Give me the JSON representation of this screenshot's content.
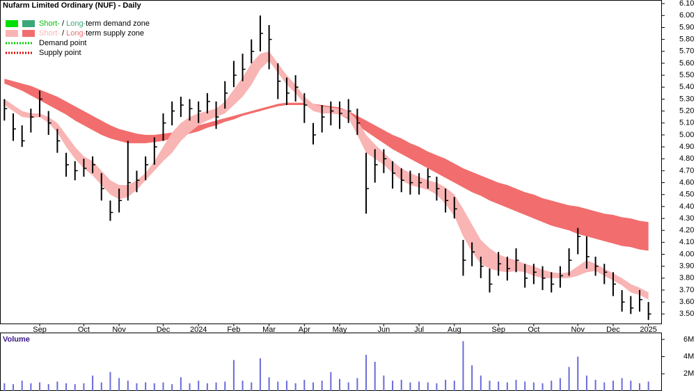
{
  "chart_data": {
    "type": "ohlc",
    "title": "Nufarm Limited Ordinary (NUF) - Daily",
    "categories": [
      null,
      null,
      null,
      null,
      "Sep",
      null,
      null,
      null,
      null,
      "Oct",
      null,
      null,
      null,
      "Nov",
      null,
      null,
      null,
      null,
      "Dec",
      null,
      null,
      null,
      "2024",
      null,
      null,
      null,
      "Feb",
      null,
      null,
      null,
      "Mar",
      null,
      null,
      null,
      "Apr",
      null,
      null,
      null,
      "May",
      null,
      null,
      null,
      null,
      "Jun",
      null,
      null,
      null,
      "Jul",
      null,
      null,
      null,
      "Aug",
      null,
      null,
      null,
      null,
      "Sep",
      null,
      null,
      null,
      "Oct",
      null,
      null,
      null,
      null,
      "Nov",
      null,
      null,
      null,
      "Dec",
      null,
      null,
      null,
      "2025"
    ],
    "high": [
      5.3,
      5.18,
      5.08,
      5.22,
      5.37,
      5.2,
      5.05,
      4.85,
      4.78,
      4.8,
      4.82,
      4.68,
      4.45,
      4.55,
      4.95,
      4.7,
      4.82,
      4.98,
      5.18,
      5.28,
      5.32,
      5.3,
      5.28,
      5.35,
      5.28,
      5.45,
      5.62,
      5.68,
      5.8,
      6.0,
      5.92,
      5.6,
      5.48,
      5.5,
      5.35,
      5.1,
      5.25,
      5.28,
      5.28,
      5.3,
      5.22,
      4.85,
      4.88,
      4.88,
      4.78,
      4.72,
      4.7,
      4.68,
      4.72,
      4.65,
      4.55,
      4.48,
      4.12,
      4.1,
      3.98,
      3.88,
      4.02,
      3.98,
      4.05,
      3.92,
      3.92,
      3.9,
      3.85,
      3.9,
      4.05,
      4.22,
      4.15,
      3.98,
      3.92,
      3.85,
      3.7,
      3.65,
      3.7,
      3.6
    ],
    "low": [
      5.12,
      4.95,
      4.9,
      5.02,
      5.15,
      5.0,
      4.85,
      4.65,
      4.62,
      4.65,
      4.68,
      4.45,
      4.28,
      4.35,
      4.45,
      4.52,
      4.62,
      4.75,
      4.95,
      5.08,
      5.15,
      5.12,
      5.1,
      5.18,
      5.05,
      5.22,
      5.4,
      5.45,
      5.6,
      5.7,
      5.55,
      5.3,
      5.25,
      5.28,
      5.1,
      4.92,
      5.02,
      5.08,
      5.05,
      5.1,
      5.0,
      4.34,
      4.6,
      4.68,
      4.55,
      4.52,
      4.5,
      4.5,
      4.55,
      4.45,
      4.35,
      4.3,
      3.82,
      3.9,
      3.8,
      3.68,
      3.82,
      3.78,
      3.85,
      3.72,
      3.75,
      3.7,
      3.68,
      3.72,
      3.82,
      4.0,
      3.88,
      3.82,
      3.75,
      3.65,
      3.52,
      3.5,
      3.52,
      3.45
    ],
    "close": [
      5.22,
      5.05,
      4.95,
      5.15,
      5.3,
      5.1,
      4.95,
      4.75,
      4.7,
      4.72,
      4.75,
      4.55,
      4.35,
      4.45,
      4.6,
      4.62,
      4.75,
      4.9,
      5.1,
      5.2,
      5.25,
      5.22,
      5.2,
      5.28,
      5.15,
      5.35,
      5.5,
      5.55,
      5.7,
      5.85,
      5.8,
      5.45,
      5.35,
      5.4,
      5.25,
      5.0,
      5.15,
      5.2,
      5.18,
      5.2,
      5.1,
      4.55,
      4.75,
      4.8,
      4.68,
      4.62,
      4.6,
      4.6,
      4.65,
      4.55,
      4.45,
      4.38,
      3.95,
      4.02,
      3.9,
      3.75,
      3.92,
      3.88,
      3.95,
      3.8,
      3.85,
      3.8,
      3.75,
      3.82,
      3.95,
      4.15,
      3.98,
      3.9,
      3.85,
      3.75,
      3.6,
      3.55,
      3.62,
      3.5
    ],
    "bar_color": "#000000",
    "bands": [
      {
        "color": "#f9b4b4",
        "upper": [
          5.3,
          5.25,
          5.2,
          5.18,
          5.18,
          5.15,
          5.1,
          5.0,
          4.9,
          4.82,
          4.78,
          4.7,
          4.62,
          4.58,
          4.58,
          4.62,
          4.68,
          4.78,
          4.9,
          5.02,
          5.1,
          5.15,
          5.18,
          5.2,
          5.22,
          5.28,
          5.38,
          5.48,
          5.6,
          5.68,
          5.7,
          5.6,
          5.5,
          5.42,
          5.32,
          5.26,
          5.24,
          5.23,
          5.22,
          5.2,
          5.12,
          5.0,
          4.92,
          4.85,
          4.78,
          4.72,
          4.68,
          4.65,
          4.62,
          4.6,
          4.56,
          4.5,
          4.38,
          4.25,
          4.12,
          4.05,
          4.0,
          3.97,
          3.95,
          3.92,
          3.9,
          3.87,
          3.85,
          3.84,
          3.85,
          3.9,
          3.95,
          3.92,
          3.88,
          3.84,
          3.8,
          3.75,
          3.72,
          3.68
        ],
        "lower": [
          5.25,
          5.2,
          5.15,
          5.14,
          5.15,
          5.1,
          5.02,
          4.9,
          4.8,
          4.72,
          4.66,
          4.58,
          4.5,
          4.46,
          4.48,
          4.54,
          4.62,
          4.7,
          4.78,
          4.85,
          4.95,
          5.02,
          5.08,
          5.12,
          5.15,
          5.18,
          5.25,
          5.32,
          5.42,
          5.55,
          5.62,
          5.52,
          5.42,
          5.35,
          5.26,
          5.2,
          5.18,
          5.18,
          5.17,
          5.14,
          5.0,
          4.85,
          4.8,
          4.75,
          4.68,
          4.62,
          4.58,
          4.56,
          4.54,
          4.5,
          4.42,
          4.32,
          4.15,
          4.02,
          3.92,
          3.88,
          3.86,
          3.85,
          3.86,
          3.85,
          3.82,
          3.8,
          3.8,
          3.8,
          3.8,
          3.82,
          3.85,
          3.86,
          3.82,
          3.78,
          3.74,
          3.68,
          3.66,
          3.62
        ]
      },
      {
        "color": "#f26d6d",
        "upper": [
          5.47,
          5.45,
          5.43,
          5.41,
          5.38,
          5.35,
          5.32,
          5.28,
          5.24,
          5.2,
          5.16,
          5.12,
          5.08,
          5.05,
          5.03,
          5.01,
          5.0,
          5.0,
          5.01,
          5.02,
          5.04,
          5.06,
          5.08,
          5.1,
          5.12,
          5.14,
          5.16,
          5.18,
          5.2,
          5.22,
          5.24,
          5.26,
          5.27,
          5.27,
          5.27,
          5.26,
          5.25,
          5.24,
          5.23,
          5.2,
          5.16,
          5.12,
          5.08,
          5.04,
          5.0,
          4.97,
          4.93,
          4.9,
          4.86,
          4.83,
          4.8,
          4.76,
          4.72,
          4.69,
          4.66,
          4.63,
          4.6,
          4.58,
          4.55,
          4.52,
          4.5,
          4.47,
          4.45,
          4.43,
          4.41,
          4.4,
          4.38,
          4.36,
          4.34,
          4.33,
          4.31,
          4.3,
          4.28,
          4.27
        ],
        "lower": [
          5.43,
          5.4,
          5.37,
          5.33,
          5.29,
          5.25,
          5.21,
          5.17,
          5.12,
          5.08,
          5.04,
          5.0,
          4.97,
          4.95,
          4.93,
          4.93,
          4.93,
          4.94,
          4.95,
          4.97,
          4.99,
          5.01,
          5.03,
          5.06,
          5.08,
          5.11,
          5.13,
          5.16,
          5.18,
          5.2,
          5.22,
          5.24,
          5.25,
          5.25,
          5.25,
          5.24,
          5.22,
          5.2,
          5.17,
          5.13,
          5.08,
          5.03,
          4.98,
          4.93,
          4.88,
          4.84,
          4.8,
          4.76,
          4.72,
          4.68,
          4.64,
          4.6,
          4.56,
          4.52,
          4.49,
          4.45,
          4.42,
          4.39,
          4.36,
          4.33,
          4.3,
          4.27,
          4.24,
          4.22,
          4.2,
          4.17,
          4.15,
          4.13,
          4.11,
          4.09,
          4.07,
          4.06,
          4.04,
          4.03
        ]
      }
    ],
    "ylim": [
      3.42,
      6.13
    ],
    "yticks": [
      {
        "value": 6.1,
        "label": "6.10"
      },
      {
        "value": 6.0,
        "label": "6.00"
      },
      {
        "value": 5.9,
        "label": "5.90"
      },
      {
        "value": 5.8,
        "label": "5.80"
      },
      {
        "value": 5.7,
        "label": "5.70"
      },
      {
        "value": 5.6,
        "label": "5.60"
      },
      {
        "value": 5.5,
        "label": "5.50"
      },
      {
        "value": 5.4,
        "label": "5.40"
      },
      {
        "value": 5.3,
        "label": "5.30"
      },
      {
        "value": 5.2,
        "label": "5.20"
      },
      {
        "value": 5.1,
        "label": "5.10"
      },
      {
        "value": 5.0,
        "label": "5.00"
      },
      {
        "value": 4.9,
        "label": "4.90"
      },
      {
        "value": 4.8,
        "label": "4.80"
      },
      {
        "value": 4.7,
        "label": "4.70"
      },
      {
        "value": 4.6,
        "label": "4.60"
      },
      {
        "value": 4.5,
        "label": "4.50"
      },
      {
        "value": 4.4,
        "label": "4.40"
      },
      {
        "value": 4.3,
        "label": "4.30"
      },
      {
        "value": 4.2,
        "label": "4.20"
      },
      {
        "value": 4.1,
        "label": "4.10"
      },
      {
        "value": 4.0,
        "label": "4.00"
      },
      {
        "value": 3.9,
        "label": "3.90"
      },
      {
        "value": 3.8,
        "label": "3.80"
      },
      {
        "value": 3.7,
        "label": "3.70"
      },
      {
        "value": 3.6,
        "label": "3.60"
      },
      {
        "value": 3.5,
        "label": "3.50"
      }
    ],
    "volume": {
      "label": "Volume",
      "color": "#6a6ad8",
      "values": [
        0.9,
        0.8,
        1.2,
        0.9,
        1.0,
        0.8,
        1.1,
        0.9,
        0.8,
        0.9,
        1.8,
        1.0,
        2.2,
        1.5,
        1.2,
        0.9,
        1.0,
        0.9,
        1.0,
        0.8,
        1.6,
        0.9,
        1.2,
        0.9,
        1.0,
        1.1,
        3.6,
        1.2,
        1.0,
        3.8,
        1.6,
        1.1,
        1.2,
        0.9,
        1.3,
        1.0,
        1.2,
        2.2,
        1.4,
        1.0,
        1.5,
        4.2,
        3.4,
        1.8,
        1.2,
        1.3,
        1.0,
        1.1,
        1.0,
        0.9,
        1.3,
        1.2,
        5.8,
        3.0,
        1.8,
        1.2,
        1.1,
        1.0,
        1.3,
        1.1,
        1.0,
        0.9,
        1.2,
        1.5,
        2.8,
        4.0,
        1.8,
        1.3,
        1.0,
        1.2,
        1.5,
        1.2,
        0.9,
        1.1
      ],
      "ylim": [
        0,
        6.8
      ],
      "yticks": [
        {
          "value": 6,
          "label": "6M"
        },
        {
          "value": 4,
          "label": "4M"
        },
        {
          "value": 2,
          "label": "2M"
        }
      ]
    },
    "legend": [
      {
        "kind": "swatch",
        "colors": [
          "#00e000",
          "#3aa878"
        ],
        "parts": [
          "Short-",
          " / ",
          "Long-",
          "term demand zone"
        ],
        "part_colors": [
          "#00c000",
          "#000000",
          "#3aa878",
          "#000000"
        ]
      },
      {
        "kind": "swatch",
        "colors": [
          "#f9b4b4",
          "#f26d6d"
        ],
        "parts": [
          "Short-",
          " / ",
          "Long-",
          "term supply zone"
        ],
        "part_colors": [
          "#f9b4b4",
          "#000000",
          "#f26d6d",
          "#000000"
        ]
      },
      {
        "kind": "dotted",
        "colors": [
          "#00d000"
        ],
        "parts": [
          "Demand point"
        ],
        "part_colors": [
          "#000000"
        ]
      },
      {
        "kind": "dotted",
        "colors": [
          "#e00000"
        ],
        "parts": [
          "Supply point"
        ],
        "part_colors": [
          "#000000"
        ]
      }
    ]
  }
}
